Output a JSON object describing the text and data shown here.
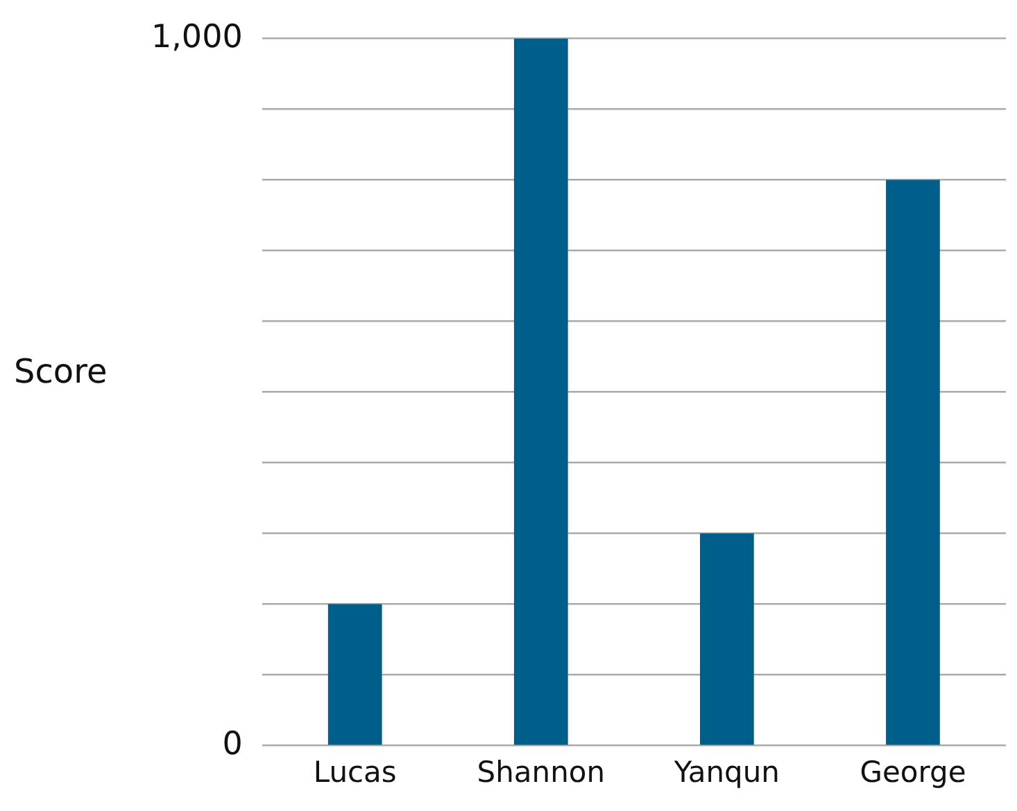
{
  "chart_data": {
    "type": "bar",
    "ylabel": "Score",
    "categories": [
      "Lucas",
      "Shannon",
      "Yanqun",
      "George"
    ],
    "values": [
      200,
      1000,
      300,
      800
    ],
    "color": "#005f8a",
    "ylim": [
      0,
      1000
    ],
    "yticks": [
      0,
      {
        "value": 100,
        "label": null
      },
      {
        "value": 200,
        "label": null
      },
      {
        "value": 300,
        "label": null
      },
      {
        "value": 400,
        "label": null
      },
      {
        "value": 500,
        "label": null
      },
      {
        "value": 600,
        "label": null
      },
      {
        "value": 700,
        "label": null
      },
      {
        "value": 800,
        "label": null
      },
      {
        "value": 900,
        "label": null
      },
      {
        "value": 1000,
        "label": "1,000"
      }
    ],
    "grid": "y"
  }
}
